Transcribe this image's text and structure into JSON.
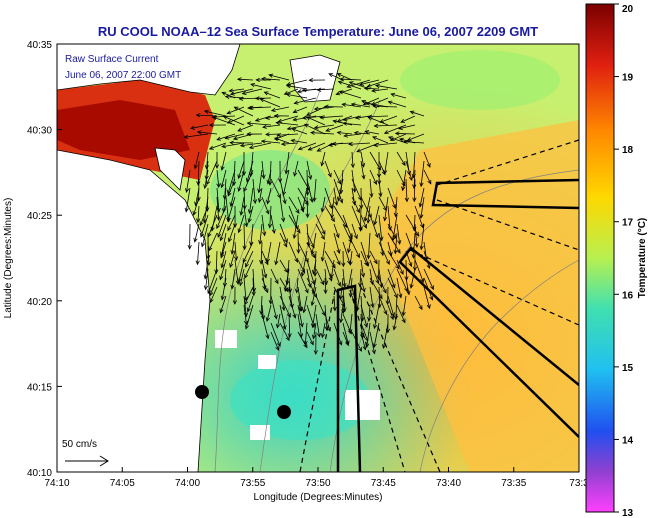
{
  "title": "RU COOL   NOAA–12  Sea Surface Temperature:  June 06, 2007 2209 GMT",
  "overlay": {
    "line1": "Raw Surface Current",
    "line2": "June 06, 2007 22:00 GMT"
  },
  "axes": {
    "xlabel": "Longitude (Degrees:Minutes)",
    "ylabel": "Latitude (Degrees:Minutes)",
    "xticks": [
      "74:10",
      "74:05",
      "74:00",
      "73:55",
      "73:50",
      "73:45",
      "73:40",
      "73:35",
      "73:3"
    ],
    "yticks": [
      "40:35",
      "40:30",
      "40:25",
      "40:20",
      "40:15",
      "40:10"
    ]
  },
  "scale_vector": {
    "label": "50 cm/s"
  },
  "colorbar": {
    "label": "Temperature (°C)",
    "ticks": [
      "20",
      "19",
      "18",
      "17",
      "16",
      "15",
      "14",
      "13"
    ],
    "range": [
      13,
      20
    ]
  },
  "colors": {
    "land": "#ffffff",
    "title": "#1a1aa0",
    "vectors": "#000000"
  }
}
